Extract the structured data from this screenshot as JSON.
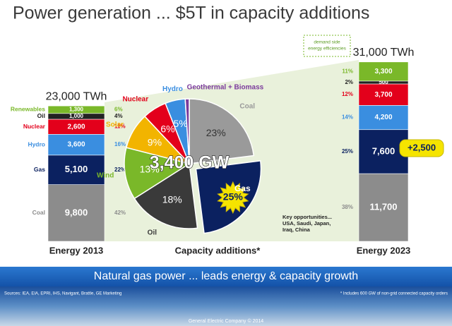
{
  "title": "Power generation ... $5T in capacity additions",
  "chart_data": [
    {
      "type": "stacked_bar",
      "title": "23,000 TWh",
      "xlabel": "Energy 2013",
      "categories": [
        "Coal",
        "Gas",
        "Hydro",
        "Nuclear",
        "Oil",
        "Renewables"
      ],
      "values": [
        9800,
        5100,
        3600,
        2600,
        1000,
        1300
      ],
      "value_labels": [
        "9,800",
        "5,100",
        "3,600",
        "2,600",
        "1,000",
        "1,300"
      ],
      "shares": [
        42,
        22,
        16,
        11,
        4,
        6
      ],
      "share_labels": [
        "42%",
        "22%",
        "16%",
        "11%",
        "4%",
        "6%"
      ],
      "colors": [
        "#8c8c8c",
        "#0b2160",
        "#3a8ee0",
        "#e3001b",
        "#222222",
        "#7ab829"
      ]
    },
    {
      "type": "pie",
      "title": "3,400 GW",
      "xlabel": "Capacity additions*",
      "categories": [
        "Coal",
        "Gas",
        "Oil",
        "Wind",
        "Solar",
        "Nuclear",
        "Hydro",
        "Geothermal + Biomass"
      ],
      "values": [
        23,
        25,
        18,
        13,
        9,
        6,
        5,
        1
      ],
      "value_labels": [
        "23%",
        "25%",
        "18%",
        "13%",
        "9%",
        "6%",
        "5%",
        null
      ],
      "colors": [
        "#9a9a9a",
        "#0b2160",
        "#3a3a3a",
        "#7ab829",
        "#f2b400",
        "#e3001b",
        "#3a8ee0",
        "#7b3a9c"
      ],
      "exploded": "Gas",
      "annotation": [
        "Key opportunities...",
        "USA, Saudi, Japan,",
        "Iraq, China"
      ]
    },
    {
      "type": "stacked_bar",
      "title": "31,000 TWh",
      "xlabel": "Energy 2023",
      "values": [
        11700,
        7600,
        4200,
        3700,
        500,
        3300
      ],
      "value_labels": [
        "11,700",
        "7,600",
        "4,200",
        "3,700",
        "500",
        "3,300"
      ],
      "shares": [
        38,
        25,
        14,
        12,
        2,
        11
      ],
      "share_labels": [
        "38%",
        "25%",
        "14%",
        "12%",
        "2%",
        "11%"
      ],
      "colors": [
        "#8c8c8c",
        "#0b2160",
        "#3a8ee0",
        "#e3001b",
        "#222222",
        "#7ab829"
      ],
      "delta_label": "+2,500",
      "note": [
        "demand side",
        "energy efficiencies"
      ]
    }
  ],
  "banner": "Natural gas power ... leads energy & capacity growth",
  "footer": {
    "sources": "Sources: IEA, EIA, EPRI, IHS, Navigant, Brattle, GE Marketing",
    "note": "* Includes 600 GW of non-grid connected capacity orders",
    "copyright": "General Electric Company © 2014"
  }
}
